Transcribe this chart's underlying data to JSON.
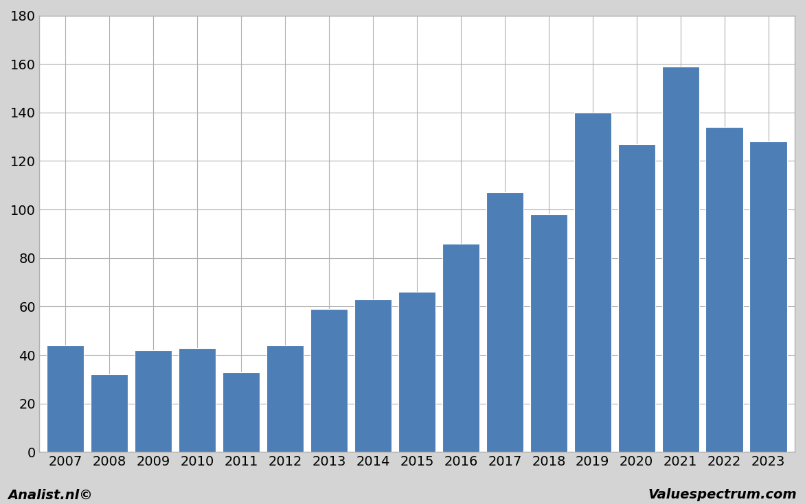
{
  "years": [
    2007,
    2008,
    2009,
    2010,
    2011,
    2012,
    2013,
    2014,
    2015,
    2016,
    2017,
    2018,
    2019,
    2020,
    2021,
    2022,
    2023
  ],
  "values": [
    44,
    32,
    42,
    43,
    33,
    44,
    59,
    63,
    66,
    86,
    107,
    98,
    140,
    127,
    159,
    134,
    128
  ],
  "bar_color": "#4d7eb5",
  "ylim": [
    0,
    180
  ],
  "yticks": [
    0,
    20,
    40,
    60,
    80,
    100,
    120,
    140,
    160,
    180
  ],
  "background_color": "#d4d4d4",
  "plot_bg_color": "#ffffff",
  "grid_color": "#b0b0b0",
  "footer_left": "Analist.nl©",
  "footer_right": "Valuespectrum.com",
  "footer_fontsize": 14,
  "tick_fontsize": 14,
  "bar_edge_color": "#ffffff",
  "bar_linewidth": 0.8,
  "bar_width": 0.85
}
